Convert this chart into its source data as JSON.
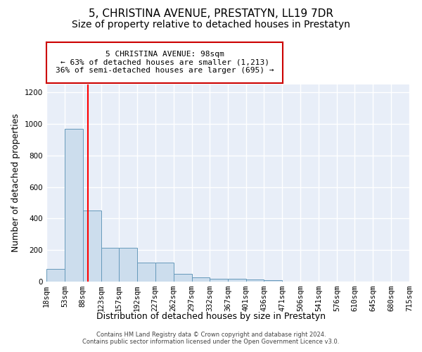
{
  "title": "5, CHRISTINA AVENUE, PRESTATYN, LL19 7DR",
  "subtitle": "Size of property relative to detached houses in Prestatyn",
  "xlabel": "Distribution of detached houses by size in Prestatyn",
  "ylabel": "Number of detached properties",
  "bar_color": "#ccdded",
  "bar_edge_color": "#6699bb",
  "background_color": "#e8eef8",
  "grid_color": "#d0d8e8",
  "red_line_x": 98,
  "bin_edges": [
    18,
    53,
    88,
    123,
    157,
    192,
    227,
    262,
    297,
    332,
    367,
    401,
    436,
    471,
    506,
    541,
    576,
    610,
    645,
    680,
    715
  ],
  "bar_heights": [
    80,
    970,
    450,
    215,
    215,
    120,
    120,
    50,
    25,
    20,
    20,
    15,
    10,
    0,
    0,
    0,
    0,
    0,
    0,
    0
  ],
  "annotation_text": "5 CHRISTINA AVENUE: 98sqm\n← 63% of detached houses are smaller (1,213)\n36% of semi-detached houses are larger (695) →",
  "annotation_box_color": "#ffffff",
  "annotation_box_edge_color": "#cc0000",
  "footer_text": "Contains HM Land Registry data © Crown copyright and database right 2024.\nContains public sector information licensed under the Open Government Licence v3.0.",
  "ylim": [
    0,
    1250
  ],
  "title_fontsize": 11,
  "subtitle_fontsize": 10,
  "xlabel_fontsize": 9,
  "ylabel_fontsize": 9,
  "tick_fontsize": 7.5,
  "footer_fontsize": 6,
  "annot_fontsize": 8
}
